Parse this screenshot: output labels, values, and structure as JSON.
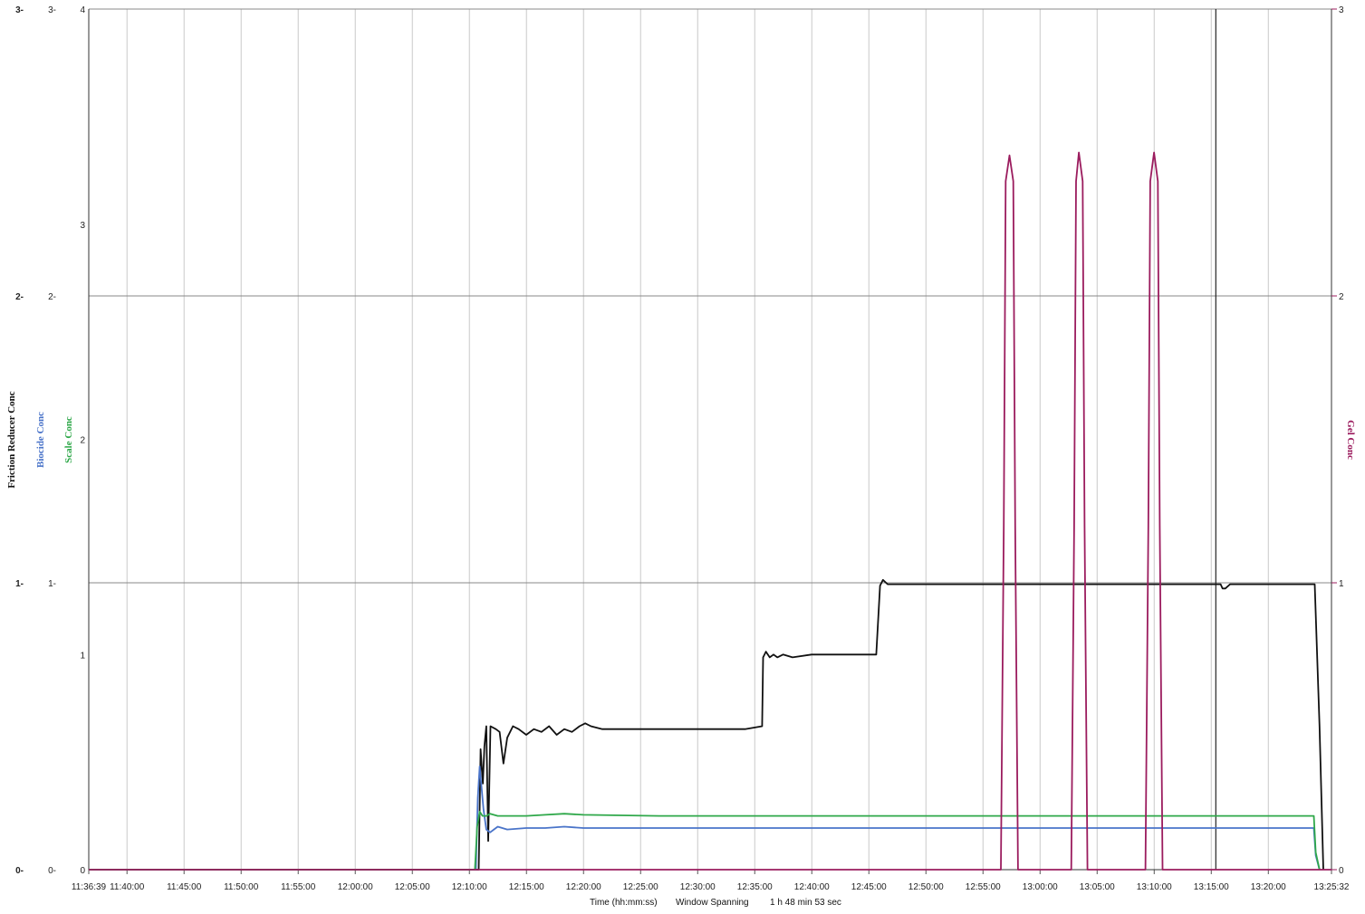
{
  "chart_data": {
    "type": "line",
    "title": "",
    "xlabel": "Time (hh:mm:ss)",
    "window_label": "Window Spanning",
    "window_value": "1 h 48 min 53 sec",
    "x_ticks": [
      "11:36:39",
      "11:40:00",
      "11:45:00",
      "11:50:00",
      "11:55:00",
      "12:00:00",
      "12:05:00",
      "12:10:00",
      "12:15:00",
      "12:20:00",
      "12:25:00",
      "12:30:00",
      "12:35:00",
      "12:40:00",
      "12:45:00",
      "12:50:00",
      "12:55:00",
      "13:00:00",
      "13:05:00",
      "13:10:00",
      "13:15:00",
      "13:20:00",
      "13:25:32"
    ],
    "x_range_seconds": [
      0,
      6533
    ],
    "grid": true,
    "axes": {
      "friction": {
        "label": "Friction Reducer Conc",
        "color": "#111111",
        "ticks": [
          "3",
          "2",
          "1",
          "0"
        ],
        "range": [
          0,
          3
        ]
      },
      "biocide": {
        "label": "Biocide Conc",
        "color": "#4a74c9",
        "ticks": [
          "3",
          "2",
          "1",
          "0"
        ],
        "range": [
          0,
          3
        ]
      },
      "scale": {
        "label": "Scale Conc",
        "color": "#2fa84a",
        "ticks": [
          "4",
          "3",
          "2",
          "1",
          "0"
        ],
        "range": [
          0,
          4
        ]
      },
      "gel": {
        "label": "Gel Conc",
        "color": "#9b1c5e",
        "ticks": [
          "3",
          "2",
          "1",
          "0"
        ],
        "range": [
          0,
          3
        ]
      }
    },
    "cursor_x_seconds": 5925,
    "series": [
      {
        "key": "friction",
        "axis": "friction",
        "color": "#111111",
        "x": [
          0,
          2050,
          2060,
          2072,
          2080,
          2090,
          2100,
          2112,
          2140,
          2160,
          2180,
          2200,
          2230,
          2260,
          2300,
          2340,
          2380,
          2420,
          2460,
          2500,
          2540,
          2580,
          2610,
          2640,
          2700,
          3000,
          3300,
          3450,
          3540,
          3545,
          3560,
          3580,
          3600,
          3620,
          3650,
          3700,
          3800,
          4000,
          4140,
          4160,
          4175,
          4200,
          4300,
          4500,
          4700,
          4900,
          5100,
          5300,
          5500,
          5700,
          5900,
          5950,
          5960,
          5975,
          6000,
          6050,
          6150,
          6250,
          6445,
          6470,
          6490
        ],
        "y": [
          0,
          0,
          0.42,
          0.3,
          0.43,
          0.5,
          0.1,
          0.5,
          0.49,
          0.48,
          0.37,
          0.46,
          0.5,
          0.49,
          0.47,
          0.49,
          0.48,
          0.5,
          0.47,
          0.49,
          0.48,
          0.5,
          0.51,
          0.5,
          0.49,
          0.49,
          0.49,
          0.49,
          0.5,
          0.74,
          0.76,
          0.74,
          0.75,
          0.74,
          0.75,
          0.74,
          0.75,
          0.75,
          0.75,
          0.99,
          1.01,
          0.995,
          0.995,
          0.995,
          0.995,
          0.995,
          0.995,
          0.995,
          0.995,
          0.995,
          0.995,
          0.995,
          0.98,
          0.98,
          0.995,
          0.995,
          0.995,
          0.995,
          0.995,
          0.5,
          0
        ]
      },
      {
        "key": "biocide",
        "axis": "biocide",
        "color": "#4a74c9",
        "x": [
          0,
          2035,
          2045,
          2055,
          2075,
          2090,
          2110,
          2130,
          2150,
          2200,
          2300,
          2400,
          2500,
          2600,
          3000,
          3500,
          4000,
          4500,
          5000,
          5500,
          6000,
          6300,
          6440,
          6450,
          6470
        ],
        "y": [
          0,
          0,
          0.25,
          0.36,
          0.21,
          0.14,
          0.13,
          0.14,
          0.15,
          0.14,
          0.145,
          0.145,
          0.15,
          0.145,
          0.145,
          0.145,
          0.145,
          0.145,
          0.145,
          0.145,
          0.145,
          0.145,
          0.145,
          0.05,
          0
        ]
      },
      {
        "key": "scale",
        "axis": "scale",
        "color": "#2fa84a",
        "x": [
          0,
          2030,
          2042,
          2055,
          2070,
          2090,
          2110,
          2150,
          2200,
          2300,
          2400,
          2500,
          2600,
          3000,
          3500,
          4000,
          4500,
          5000,
          5500,
          6000,
          6300,
          6440,
          6450,
          6470
        ],
        "y": [
          0,
          0,
          0.2,
          0.27,
          0.25,
          0.25,
          0.26,
          0.25,
          0.25,
          0.25,
          0.255,
          0.26,
          0.255,
          0.25,
          0.25,
          0.25,
          0.25,
          0.25,
          0.25,
          0.25,
          0.25,
          0.25,
          0.08,
          0
        ]
      },
      {
        "key": "gel",
        "axis": "gel",
        "color": "#9b1c5e",
        "x": [
          0,
          4795,
          4810,
          4820,
          4840,
          4860,
          4870,
          4885,
          5165,
          5180,
          5190,
          5205,
          5225,
          5235,
          5250,
          5555,
          5570,
          5580,
          5600,
          5620,
          5630,
          5645,
          6533
        ],
        "y": [
          0,
          0,
          1.2,
          2.4,
          2.49,
          2.4,
          1.2,
          0,
          0,
          1.2,
          2.4,
          2.5,
          2.4,
          1.2,
          0,
          0,
          1.2,
          2.4,
          2.5,
          2.4,
          1.2,
          0,
          0
        ]
      }
    ]
  }
}
